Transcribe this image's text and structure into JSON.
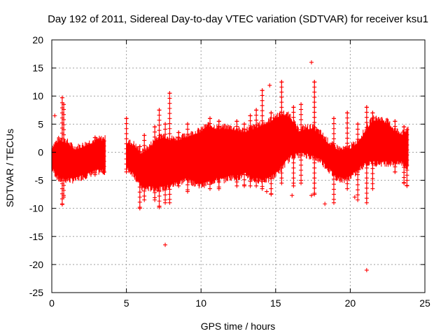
{
  "chart_data": {
    "type": "scatter",
    "title": "Day 192 of 2011, Sidereal Day-to-day VTEC variation (SDTVAR) for receiver ksu1",
    "xlabel": "GPS time / hours",
    "ylabel": "SDTVAR / TECUs",
    "xlim": [
      0,
      25
    ],
    "ylim": [
      -25,
      20
    ],
    "grid": true,
    "marker": "+",
    "xticks": [
      0,
      5,
      10,
      15,
      20,
      25
    ],
    "yticks": [
      20,
      15,
      10,
      5,
      0,
      -5,
      -10,
      -15,
      -20,
      -25
    ],
    "xtick_labels": [
      "0",
      "5",
      "10",
      "15",
      "20",
      "25"
    ],
    "ytick_labels": [
      "20",
      "15",
      "10",
      "5",
      "0",
      "-5",
      "-10",
      "-15",
      "-20",
      "-25"
    ],
    "series": [
      {
        "name": "SDTVAR",
        "color": "#ff0000",
        "envelope": {
          "x": [
            0.0,
            0.5,
            1.0,
            1.5,
            2.0,
            2.5,
            3.0,
            3.5,
            5.0,
            5.5,
            6.0,
            6.5,
            7.0,
            7.5,
            8.0,
            8.5,
            9.0,
            9.5,
            10.0,
            10.5,
            11.0,
            11.5,
            12.0,
            12.5,
            13.0,
            13.5,
            14.0,
            14.5,
            15.0,
            15.5,
            16.0,
            16.5,
            17.0,
            17.5,
            18.0,
            18.5,
            19.0,
            19.5,
            20.0,
            20.5,
            21.0,
            21.5,
            22.0,
            22.5,
            23.0,
            23.5,
            23.9
          ],
          "upper": [
            1.0,
            2.5,
            2.0,
            0.8,
            1.2,
            1.8,
            2.3,
            2.5,
            2.0,
            1.5,
            0.0,
            1.0,
            2.5,
            3.0,
            2.5,
            2.5,
            3.0,
            3.5,
            4.0,
            5.0,
            4.5,
            4.5,
            4.5,
            4.0,
            4.0,
            4.5,
            5.0,
            5.5,
            6.5,
            7.0,
            6.5,
            4.0,
            4.5,
            4.5,
            3.5,
            2.0,
            1.0,
            0.5,
            1.0,
            2.0,
            4.0,
            6.0,
            6.0,
            5.5,
            4.0,
            3.5,
            4.0
          ],
          "lower": [
            -3.0,
            -5.0,
            -5.0,
            -5.0,
            -4.5,
            -4.0,
            -3.5,
            -3.5,
            -3.0,
            -4.0,
            -6.5,
            -6.5,
            -6.5,
            -6.5,
            -6.0,
            -5.5,
            -5.0,
            -5.5,
            -6.0,
            -5.5,
            -5.0,
            -5.0,
            -4.5,
            -4.5,
            -4.0,
            -5.0,
            -5.0,
            -5.0,
            -4.0,
            -2.5,
            -1.0,
            -0.5,
            -0.5,
            -1.0,
            -1.5,
            -3.0,
            -4.5,
            -5.0,
            -4.5,
            -3.5,
            -2.0,
            -2.0,
            -2.0,
            -2.0,
            -2.0,
            -2.0,
            -3.0
          ]
        },
        "gap": [
          3.6,
          5.0
        ],
        "spikes": [
          [
            0.7,
            9.7,
            -9.3
          ],
          [
            0.8,
            8.5,
            -8.0
          ],
          [
            2.9,
            2.6,
            -4.0
          ],
          [
            3.5,
            2.0,
            -3.6
          ],
          [
            5.0,
            6.0,
            -3.5
          ],
          [
            5.9,
            1.0,
            -10.0
          ],
          [
            6.2,
            3.0,
            -8.5
          ],
          [
            6.9,
            4.5,
            -8.5
          ],
          [
            7.2,
            7.5,
            -9.8
          ],
          [
            7.6,
            5.0,
            -9.0
          ],
          [
            7.9,
            10.5,
            -9.0
          ],
          [
            8.5,
            3.5,
            -6.0
          ],
          [
            9.1,
            5.0,
            -7.0
          ],
          [
            10.6,
            6.0,
            -6.5
          ],
          [
            11.2,
            5.5,
            -6.5
          ],
          [
            12.4,
            5.5,
            -6.0
          ],
          [
            12.9,
            5.0,
            -6.0
          ],
          [
            13.3,
            6.5,
            -6.0
          ],
          [
            13.7,
            7.5,
            -6.0
          ],
          [
            14.1,
            11.0,
            -6.5
          ],
          [
            14.7,
            7.0,
            -7.5
          ],
          [
            15.4,
            12.5,
            -5.5
          ],
          [
            16.2,
            8.0,
            -6.0
          ],
          [
            16.7,
            8.5,
            -5.5
          ],
          [
            17.6,
            12.5,
            -7.5
          ],
          [
            18.9,
            6.0,
            -9.0
          ],
          [
            19.8,
            7.0,
            -6.5
          ],
          [
            20.5,
            5.0,
            -8.5
          ],
          [
            21.1,
            8.0,
            -9.0
          ],
          [
            21.5,
            7.0,
            -6.5
          ],
          [
            23.0,
            5.5,
            -3.5
          ],
          [
            23.6,
            4.5,
            -5.5
          ],
          [
            23.8,
            4.0,
            -6.0
          ]
        ],
        "outliers": [
          [
            0.2,
            6.5
          ],
          [
            17.4,
            16.0
          ],
          [
            14.6,
            11.9
          ],
          [
            7.6,
            -16.5
          ],
          [
            21.1,
            -21.0
          ],
          [
            18.3,
            -9.2
          ],
          [
            17.4,
            -7.7
          ],
          [
            20.3,
            -8.0
          ],
          [
            14.4,
            -7.0
          ],
          [
            16.1,
            -7.7
          ]
        ]
      }
    ]
  }
}
